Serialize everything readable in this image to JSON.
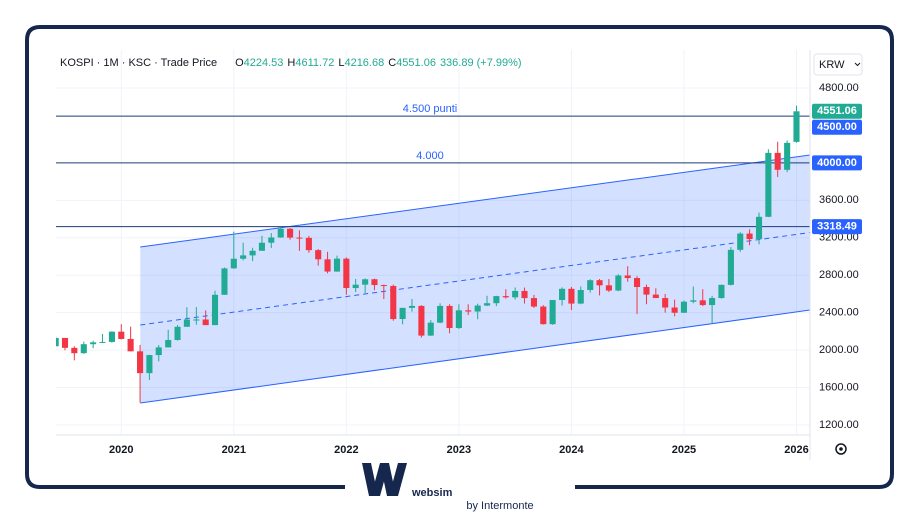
{
  "header": {
    "title": "KOSPI · 1M · KSC · Trade Price",
    "ohlc_keys": [
      "O",
      "H",
      "L",
      "C"
    ],
    "change": "336.89 (+7.99%)",
    "currency": "KRW"
  },
  "chart_data": {
    "type": "candlestick",
    "x": [
      2019.417,
      2019.5,
      2019.583,
      2019.667,
      2019.75,
      2019.833,
      2019.917,
      2020.0,
      2020.083,
      2020.167,
      2020.25,
      2020.333,
      2020.417,
      2020.5,
      2020.583,
      2020.667,
      2020.75,
      2020.833,
      2020.917,
      2021.0,
      2021.083,
      2021.167,
      2021.25,
      2021.333,
      2021.417,
      2021.5,
      2021.583,
      2021.667,
      2021.75,
      2021.833,
      2021.917,
      2022.0,
      2022.083,
      2022.167,
      2022.25,
      2022.333,
      2022.417,
      2022.5,
      2022.583,
      2022.667,
      2022.75,
      2022.833,
      2022.917,
      2023.0,
      2023.083,
      2023.167,
      2023.25,
      2023.333,
      2023.417,
      2023.5,
      2023.583,
      2023.667,
      2023.75,
      2023.833,
      2023.917,
      2024.0,
      2024.083,
      2024.167,
      2024.25,
      2024.333,
      2024.417,
      2024.5,
      2024.583,
      2024.667,
      2024.75,
      2024.833,
      2024.917,
      2025.0,
      2025.083,
      2025.167,
      2025.25,
      2025.333,
      2025.417,
      2025.5,
      2025.583,
      2025.667,
      2025.75,
      2025.833,
      2025.917,
      2026.0
    ],
    "open": [
      2041,
      2130,
      2024,
      1967,
      2063,
      2083,
      2087,
      2197,
      2119,
      1987,
      1754,
      1947,
      2029,
      2108,
      2249,
      2326,
      2327,
      2267,
      2591,
      2873,
      2976,
      3012,
      3061,
      3147,
      3203,
      3296,
      3202,
      3199,
      3068,
      2970,
      2839,
      2977,
      2663,
      2699,
      2757,
      2695,
      2685,
      2332,
      2451,
      2472,
      2155,
      2293,
      2472,
      2236,
      2425,
      2412,
      2476,
      2501,
      2577,
      2564,
      2632,
      2556,
      2465,
      2277,
      2535,
      2655,
      2497,
      2642,
      2747,
      2692,
      2636,
      2797,
      2770,
      2674,
      2593,
      2556,
      2455,
      2399,
      2517,
      2532,
      2481,
      2556,
      2697,
      3071,
      3245,
      3186,
      3424,
      4107,
      3926,
      4224.53
    ],
    "high": [
      2145,
      2130,
      2040,
      2090,
      2100,
      2173,
      2200,
      2277,
      2250,
      2055,
      1950,
      2054,
      2217,
      2267,
      2458,
      2460,
      2425,
      2634,
      2882,
      3266,
      3147,
      3093,
      3222,
      3250,
      3316,
      3305,
      3280,
      3220,
      3080,
      3050,
      3010,
      2990,
      2760,
      2765,
      2764,
      2700,
      2700,
      2452,
      2546,
      2480,
      2320,
      2500,
      2490,
      2490,
      2490,
      2496,
      2580,
      2580,
      2650,
      2669,
      2668,
      2590,
      2480,
      2535,
      2670,
      2675,
      2680,
      2757,
      2760,
      2760,
      2810,
      2896,
      2790,
      2700,
      2660,
      2600,
      2540,
      2530,
      2680,
      2650,
      2580,
      2700,
      3100,
      3260,
      3290,
      3470,
      4146,
      4226,
      4240,
      4611.72
    ],
    "low": [
      2040,
      1998,
      1891,
      1960,
      2020,
      2080,
      2080,
      2114,
      1987,
      1439,
      1680,
      1880,
      2028,
      2101,
      2248,
      2271,
      2267,
      2267,
      2590,
      2869,
      2958,
      2950,
      3061,
      3091,
      3200,
      3180,
      3060,
      3040,
      2902,
      2820,
      2837,
      2591,
      2620,
      2610,
      2640,
      2546,
      2314,
      2276,
      2410,
      2134,
      2150,
      2287,
      2180,
      2225,
      2375,
      2330,
      2470,
      2470,
      2550,
      2540,
      2497,
      2450,
      2273,
      2270,
      2475,
      2429,
      2490,
      2614,
      2584,
      2620,
      2630,
      2730,
      2386,
      2490,
      2560,
      2400,
      2360,
      2398,
      2500,
      2470,
      2284,
      2550,
      2690,
      3050,
      3120,
      3130,
      3420,
      3850,
      3900,
      4216.68
    ],
    "close": [
      2130,
      2024,
      1967,
      2063,
      2083,
      2087,
      2197,
      2119,
      1987,
      1754,
      1947,
      2029,
      2108,
      2249,
      2326,
      2327,
      2267,
      2591,
      2873,
      2976,
      3012,
      3061,
      3147,
      3203,
      3296,
      3202,
      3199,
      3068,
      2970,
      2839,
      2977,
      2663,
      2699,
      2757,
      2695,
      2685,
      2332,
      2451,
      2472,
      2155,
      2293,
      2472,
      2236,
      2425,
      2412,
      2476,
      2501,
      2577,
      2564,
      2632,
      2556,
      2465,
      2277,
      2535,
      2655,
      2497,
      2642,
      2747,
      2692,
      2636,
      2797,
      2770,
      2674,
      2593,
      2556,
      2455,
      2399,
      2517,
      2532,
      2481,
      2556,
      2697,
      3071,
      3245,
      3186,
      3424,
      4107,
      3926,
      4214,
      4551.06
    ],
    "color_up": "#22ab94",
    "color_down": "#f23645",
    "xlim": [
      2019.42,
      2026.12
    ],
    "xticks": [
      2020,
      2021,
      2022,
      2023,
      2024,
      2025,
      2026
    ],
    "ylim": [
      1093,
      5206
    ],
    "yticks": [
      {
        "value": 1200,
        "label": "1200.00"
      },
      {
        "value": 1600,
        "label": "1600.00"
      },
      {
        "value": 2000,
        "label": "2000.00"
      },
      {
        "value": 2400,
        "label": "2400.00"
      },
      {
        "value": 2800,
        "label": "2800.00"
      },
      {
        "value": 3200,
        "label": "3200.00"
      },
      {
        "value": 3600,
        "label": "3600.00"
      },
      {
        "value": 4800,
        "label": "4800.00"
      }
    ],
    "grid": true,
    "hlines": [
      {
        "value": 4500,
        "axis_label": "4500.00",
        "label": "4.500 punti"
      },
      {
        "value": 4000,
        "axis_label": "4000.00",
        "label": "4.000"
      },
      {
        "value": 3318.49
      }
    ],
    "hline_color": "#1c3c78",
    "badge_color": "#2962ff",
    "channel": {
      "x": [
        2020.169,
        2026.12
      ],
      "upper": [
        3101,
        4084
      ],
      "lower": [
        1435,
        2428
      ],
      "color": "#2962ff"
    }
  },
  "footer": {
    "brand": "websim",
    "tagline": "by Intermonte"
  }
}
